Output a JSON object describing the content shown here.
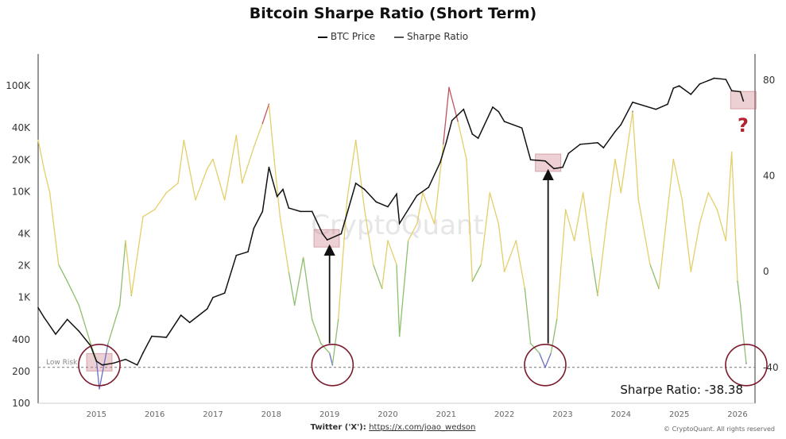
{
  "chart_data": {
    "type": "line",
    "title": "Bitcoin Sharpe Ratio (Short Term)",
    "legend": [
      "BTC Price",
      "Sharpe Ratio"
    ],
    "legend_position": "top-center",
    "grid": false,
    "x_ticks": [
      "2015",
      "2016",
      "2017",
      "2018",
      "2019",
      "2020",
      "2021",
      "2022",
      "2023",
      "2024",
      "2025",
      "2026"
    ],
    "xlim": [
      2014.0,
      2026.3
    ],
    "y_left": {
      "scale": "log",
      "ticks": [
        "100",
        "200",
        "400",
        "1K",
        "2K",
        "4K",
        "10K",
        "20K",
        "40K",
        "100K"
      ],
      "tick_values": [
        100,
        200,
        400,
        1000,
        2000,
        4000,
        10000,
        20000,
        40000,
        100000
      ],
      "lim": [
        100,
        200000
      ]
    },
    "y_right": {
      "scale": "linear",
      "ticks": [
        "-40",
        "0",
        "40",
        "80"
      ],
      "tick_values": [
        -40,
        0,
        40,
        80
      ],
      "lim": [
        -55,
        91
      ]
    },
    "series": [
      {
        "name": "BTC Price",
        "axis": "left",
        "color": "#111111",
        "x": [
          2014.0,
          2014.1,
          2014.3,
          2014.5,
          2014.7,
          2014.9,
          2015.0,
          2015.1,
          2015.3,
          2015.5,
          2015.7,
          2015.8,
          2015.95,
          2016.2,
          2016.45,
          2016.6,
          2016.9,
          2017.0,
          2017.2,
          2017.4,
          2017.6,
          2017.7,
          2017.85,
          2017.96,
          2018.1,
          2018.2,
          2018.3,
          2018.5,
          2018.7,
          2018.88,
          2018.96,
          2019.2,
          2019.45,
          2019.6,
          2019.8,
          2020.0,
          2020.15,
          2020.2,
          2020.5,
          2020.7,
          2020.9,
          2021.0,
          2021.1,
          2021.3,
          2021.45,
          2021.55,
          2021.8,
          2021.9,
          2022.0,
          2022.3,
          2022.45,
          2022.7,
          2022.85,
          2023.0,
          2023.1,
          2023.3,
          2023.6,
          2023.7,
          2023.9,
          2024.0,
          2024.2,
          2024.6,
          2024.8,
          2024.9,
          2025.0,
          2025.2,
          2025.35,
          2025.6,
          2025.8,
          2025.9,
          2026.05,
          2026.1
        ],
        "y": [
          800,
          650,
          450,
          620,
          480,
          350,
          250,
          230,
          240,
          260,
          230,
          300,
          430,
          420,
          680,
          580,
          780,
          1000,
          1100,
          2500,
          2700,
          4500,
          6500,
          17000,
          9000,
          10500,
          7000,
          6500,
          6500,
          4000,
          3500,
          4000,
          12000,
          10500,
          8000,
          7200,
          9500,
          5000,
          9200,
          11000,
          19000,
          29000,
          47000,
          60000,
          35000,
          32000,
          63000,
          57000,
          46000,
          40000,
          20000,
          19500,
          16500,
          17000,
          23000,
          28000,
          29000,
          26000,
          37000,
          43000,
          70000,
          60000,
          67000,
          95000,
          100000,
          83000,
          104000,
          118000,
          115000,
          90000,
          88000,
          72000
        ]
      },
      {
        "name": "Sharpe Ratio",
        "axis": "right",
        "color": "#e3cf6a",
        "x": [
          2014.0,
          2014.1,
          2014.2,
          2014.35,
          2014.5,
          2014.7,
          2014.9,
          2015.0,
          2015.05,
          2015.2,
          2015.4,
          2015.5,
          2015.6,
          2015.8,
          2016.0,
          2016.2,
          2016.4,
          2016.5,
          2016.7,
          2016.9,
          2017.0,
          2017.2,
          2017.4,
          2017.5,
          2017.7,
          2017.85,
          2017.96,
          2018.05,
          2018.15,
          2018.3,
          2018.4,
          2018.55,
          2018.7,
          2018.85,
          2019.0,
          2019.05,
          2019.15,
          2019.3,
          2019.45,
          2019.6,
          2019.75,
          2019.9,
          2020.0,
          2020.15,
          2020.2,
          2020.35,
          2020.5,
          2020.6,
          2020.8,
          2020.95,
          2021.05,
          2021.2,
          2021.35,
          2021.45,
          2021.6,
          2021.75,
          2021.9,
          2022.0,
          2022.2,
          2022.35,
          2022.45,
          2022.6,
          2022.7,
          2022.8,
          2022.9,
          2023.05,
          2023.2,
          2023.35,
          2023.5,
          2023.6,
          2023.75,
          2023.9,
          2024.0,
          2024.2,
          2024.3,
          2024.5,
          2024.65,
          2024.8,
          2024.9,
          2025.05,
          2025.2,
          2025.35,
          2025.5,
          2025.65,
          2025.8,
          2025.9,
          2026.0,
          2026.05,
          2026.1,
          2026.15
        ],
        "y": [
          55,
          43,
          33,
          3,
          -4,
          -14,
          -30,
          -37,
          -49,
          -30,
          -14,
          13,
          -10,
          23,
          26,
          33,
          37,
          55,
          30,
          43,
          47,
          30,
          57,
          37,
          52,
          62,
          70,
          47,
          23,
          0,
          -14,
          6,
          -20,
          -30,
          -34,
          -39,
          -20,
          30,
          55,
          26,
          3,
          -7,
          13,
          3,
          -27,
          13,
          20,
          33,
          20,
          53,
          77,
          63,
          47,
          -4,
          3,
          33,
          20,
          0,
          13,
          -7,
          -30,
          -34,
          -40,
          -34,
          -20,
          26,
          13,
          33,
          6,
          -10,
          20,
          47,
          33,
          67,
          30,
          3,
          -7,
          26,
          47,
          30,
          0,
          20,
          33,
          26,
          13,
          50,
          -4,
          -14,
          -27,
          -38.38
        ]
      }
    ],
    "color_bands": {
      "high": "#c2545a",
      "mid": "#e3cf6a",
      "low": "#8cc06c",
      "extreme_low": "#6a6fc8"
    },
    "annotations": {
      "low_risk_label": "Low Risk",
      "low_risk_level": -40,
      "current_value_label": "Sharpe Ratio: -38.38",
      "question_mark": "?",
      "watermark": "CryptoQuant",
      "circled_lows": [
        2015.05,
        2019.05,
        2022.7,
        2026.15
      ],
      "arrows_from": [
        2019.0,
        2022.75
      ],
      "highlight_boxes": [
        2015.05,
        2018.95,
        2022.75,
        2026.1
      ]
    }
  },
  "footer": {
    "twitter_label": "Twitter ('X'):",
    "twitter_link": "https://x.com/joao_wedson",
    "copyright": "© CryptoQuant. All rights reserved"
  }
}
